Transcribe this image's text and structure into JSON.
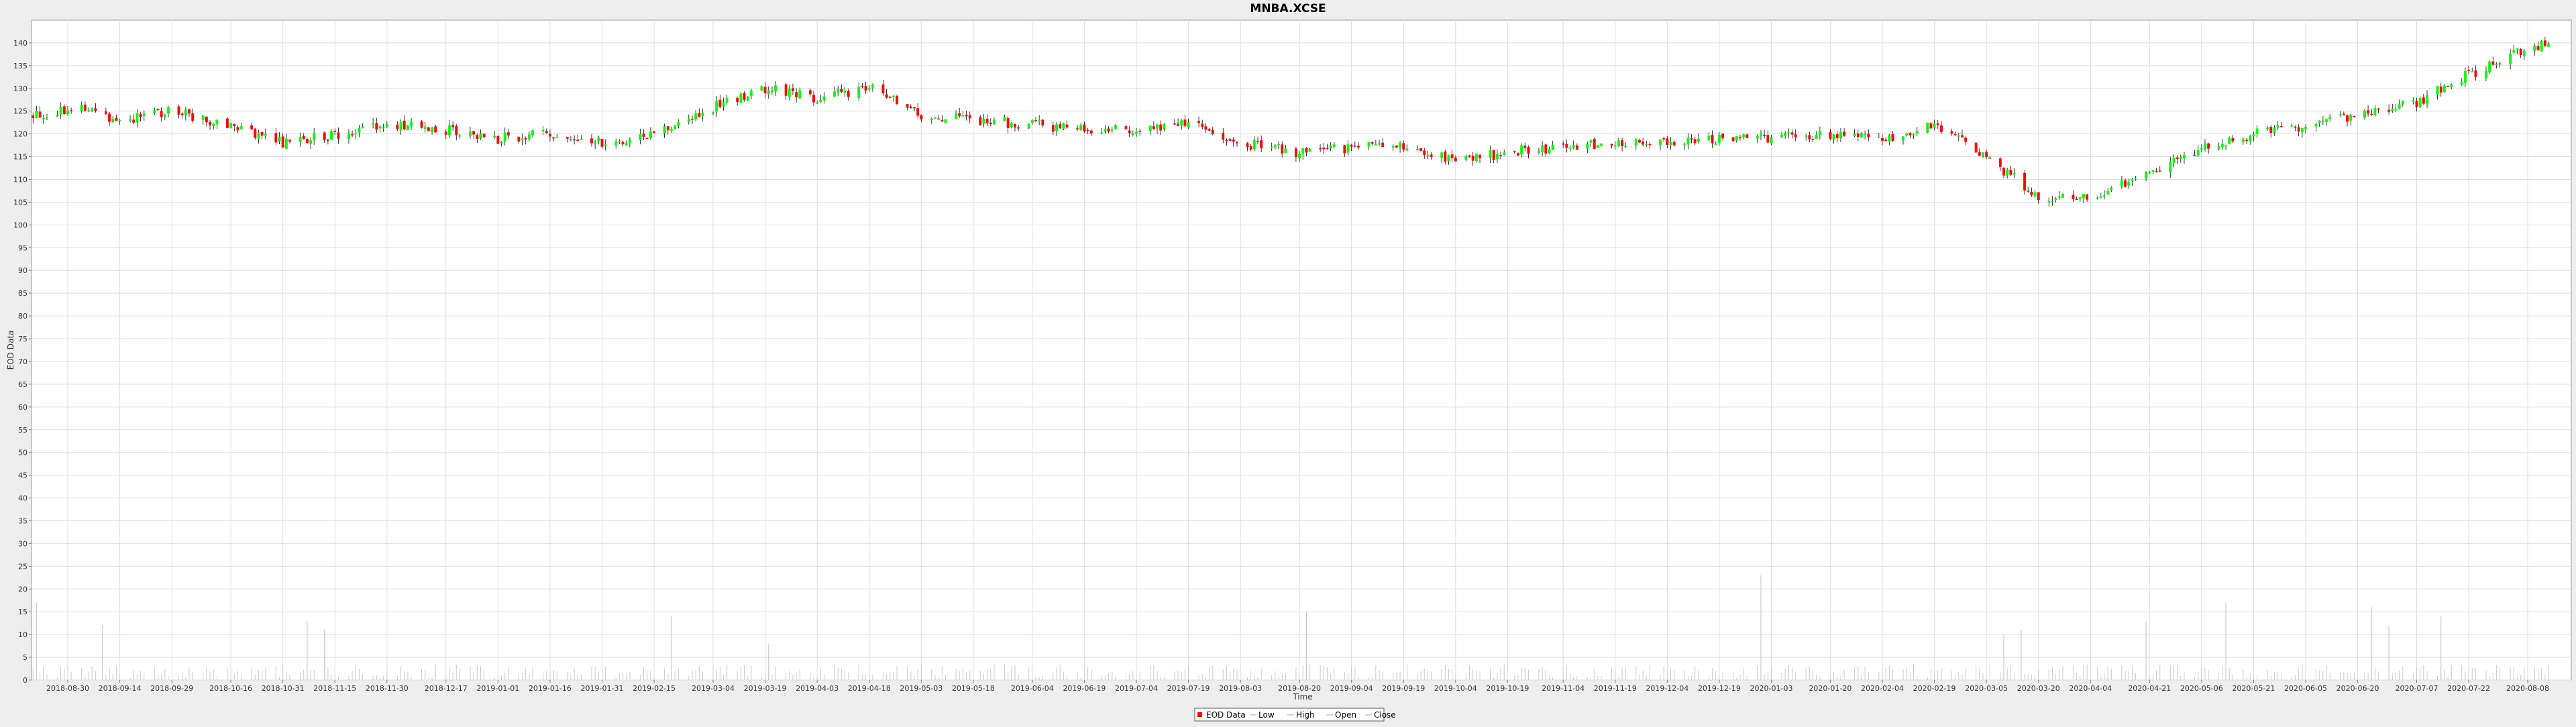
{
  "chart_data": {
    "type": "candlestick",
    "title": "MNBA.XCSE",
    "xlabel": "Time",
    "ylabel": "EOD Data",
    "ylim": [
      0,
      145
    ],
    "yticks": [
      0,
      5,
      10,
      15,
      20,
      25,
      30,
      35,
      40,
      45,
      50,
      55,
      60,
      65,
      70,
      75,
      80,
      85,
      90,
      95,
      100,
      105,
      110,
      115,
      120,
      125,
      130,
      135,
      140
    ],
    "x_tick_labels": [
      "2018-08-30",
      "2018-09-14",
      "2018-09-29",
      "2018-10-16",
      "2018-10-31",
      "2018-11-15",
      "2018-11-30",
      "2018-12-17",
      "2019-01-01",
      "2019-01-16",
      "2019-01-31",
      "2019-02-15",
      "2019-03-04",
      "2019-03-19",
      "2019-04-03",
      "2019-04-18",
      "2019-05-03",
      "2019-05-18",
      "2019-06-04",
      "2019-06-19",
      "2019-07-04",
      "2019-07-19",
      "2019-08-03",
      "2019-08-20",
      "2019-09-04",
      "2019-09-19",
      "2019-10-04",
      "2019-10-19",
      "2019-11-04",
      "2019-11-19",
      "2019-12-04",
      "2019-12-19",
      "2020-01-03",
      "2020-01-20",
      "2020-02-04",
      "2020-02-19",
      "2020-03-05",
      "2020-03-20",
      "2020-04-04",
      "2020-04-21",
      "2020-05-06",
      "2020-05-21",
      "2020-06-05",
      "2020-06-20",
      "2020-07-07",
      "2020-07-22",
      "2020-08-08"
    ],
    "price_anchors": [
      {
        "date": "2018-08-20",
        "close": 124
      },
      {
        "date": "2018-09-01",
        "close": 126
      },
      {
        "date": "2018-09-15",
        "close": 123
      },
      {
        "date": "2018-09-29",
        "close": 125
      },
      {
        "date": "2018-10-16",
        "close": 122
      },
      {
        "date": "2018-10-31",
        "close": 118
      },
      {
        "date": "2018-11-15",
        "close": 120
      },
      {
        "date": "2018-12-01",
        "close": 122
      },
      {
        "date": "2018-12-17",
        "close": 121
      },
      {
        "date": "2019-01-01",
        "close": 119
      },
      {
        "date": "2019-01-16",
        "close": 120
      },
      {
        "date": "2019-01-31",
        "close": 118
      },
      {
        "date": "2019-02-15",
        "close": 120
      },
      {
        "date": "2019-03-04",
        "close": 126
      },
      {
        "date": "2019-03-19",
        "close": 130
      },
      {
        "date": "2019-04-03",
        "close": 128
      },
      {
        "date": "2019-04-18",
        "close": 130
      },
      {
        "date": "2019-05-03",
        "close": 124
      },
      {
        "date": "2019-05-18",
        "close": 123
      },
      {
        "date": "2019-06-04",
        "close": 122
      },
      {
        "date": "2019-06-19",
        "close": 121
      },
      {
        "date": "2019-07-04",
        "close": 121
      },
      {
        "date": "2019-07-19",
        "close": 122
      },
      {
        "date": "2019-08-03",
        "close": 118
      },
      {
        "date": "2019-08-20",
        "close": 116
      },
      {
        "date": "2019-09-04",
        "close": 117
      },
      {
        "date": "2019-09-19",
        "close": 117
      },
      {
        "date": "2019-10-04",
        "close": 114
      },
      {
        "date": "2019-10-19",
        "close": 116
      },
      {
        "date": "2019-11-04",
        "close": 117
      },
      {
        "date": "2019-11-19",
        "close": 118
      },
      {
        "date": "2019-12-04",
        "close": 118
      },
      {
        "date": "2019-12-19",
        "close": 119
      },
      {
        "date": "2020-01-03",
        "close": 119
      },
      {
        "date": "2020-01-20",
        "close": 120
      },
      {
        "date": "2020-02-04",
        "close": 119
      },
      {
        "date": "2020-02-19",
        "close": 122
      },
      {
        "date": "2020-03-05",
        "close": 115
      },
      {
        "date": "2020-03-20",
        "close": 106
      },
      {
        "date": "2020-04-04",
        "close": 106
      },
      {
        "date": "2020-04-21",
        "close": 111
      },
      {
        "date": "2020-05-06",
        "close": 117
      },
      {
        "date": "2020-05-21",
        "close": 120
      },
      {
        "date": "2020-06-05",
        "close": 122
      },
      {
        "date": "2020-06-20",
        "close": 124
      },
      {
        "date": "2020-07-07",
        "close": 127
      },
      {
        "date": "2020-07-22",
        "close": 133
      },
      {
        "date": "2020-08-08",
        "close": 139
      },
      {
        "date": "2020-08-14",
        "close": 140
      }
    ],
    "volume_spikes": [
      {
        "date": "2018-08-21",
        "value": 17
      },
      {
        "date": "2018-09-09",
        "value": 12
      },
      {
        "date": "2018-11-07",
        "value": 13
      },
      {
        "date": "2018-11-12",
        "value": 11
      },
      {
        "date": "2019-02-20",
        "value": 14
      },
      {
        "date": "2019-03-20",
        "value": 8
      },
      {
        "date": "2019-08-22",
        "value": 15
      },
      {
        "date": "2019-12-31",
        "value": 23
      },
      {
        "date": "2020-03-10",
        "value": 10
      },
      {
        "date": "2020-03-15",
        "value": 11
      },
      {
        "date": "2020-04-20",
        "value": 13
      },
      {
        "date": "2020-05-13",
        "value": 17
      },
      {
        "date": "2020-06-24",
        "value": 16
      },
      {
        "date": "2020-06-29",
        "value": 12
      },
      {
        "date": "2020-07-14",
        "value": 14
      }
    ],
    "grid": true,
    "legend_position": "bottom-center",
    "legend": [
      "EOD Data",
      "Low",
      "High",
      "Open",
      "Close"
    ],
    "colors": {
      "up": "#00ff00",
      "down": "#ff0000",
      "wick": "#000000",
      "volume": "#c8c8c8",
      "plot_bg": "#ffffff",
      "grid": "#dddddd"
    }
  }
}
